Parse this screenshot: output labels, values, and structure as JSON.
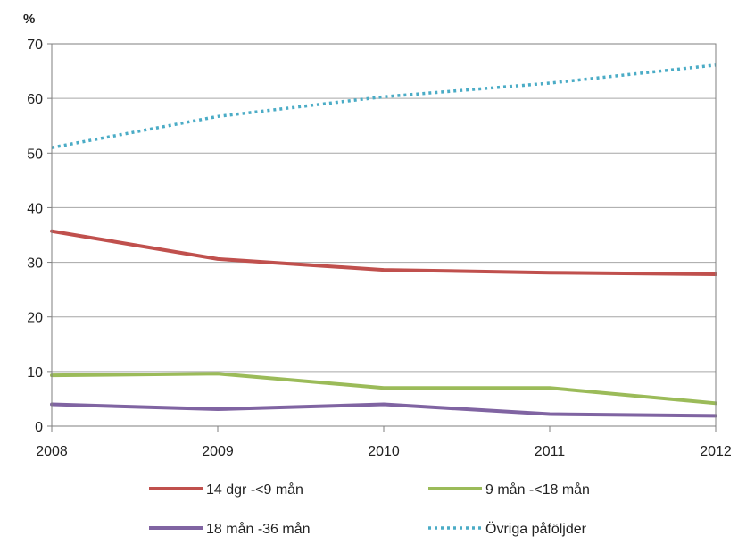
{
  "chart_data": {
    "type": "line",
    "ylabel": "%",
    "x": [
      "2008",
      "2009",
      "2010",
      "2011",
      "2012"
    ],
    "yticks": [
      "0",
      "10",
      "20",
      "30",
      "40",
      "50",
      "60",
      "70"
    ],
    "ylim": [
      0,
      70
    ],
    "grid": true,
    "legend_position": "bottom",
    "series": [
      {
        "name": "14 dgr -<9 mån",
        "values": [
          35.7,
          30.6,
          28.6,
          28.1,
          27.8
        ],
        "color": "#c0504d",
        "style": "solid"
      },
      {
        "name": "9 mån -<18 mån",
        "values": [
          9.3,
          9.6,
          7.0,
          7.0,
          4.2
        ],
        "color": "#9bbb59",
        "style": "solid"
      },
      {
        "name": "18 mån -36 mån",
        "values": [
          4.0,
          3.1,
          4.0,
          2.2,
          1.9
        ],
        "color": "#8064a2",
        "style": "solid"
      },
      {
        "name": "Övriga påföljder",
        "values": [
          51.0,
          56.7,
          60.3,
          62.8,
          66.1
        ],
        "color": "#4bacc6",
        "style": "dotted"
      }
    ]
  }
}
